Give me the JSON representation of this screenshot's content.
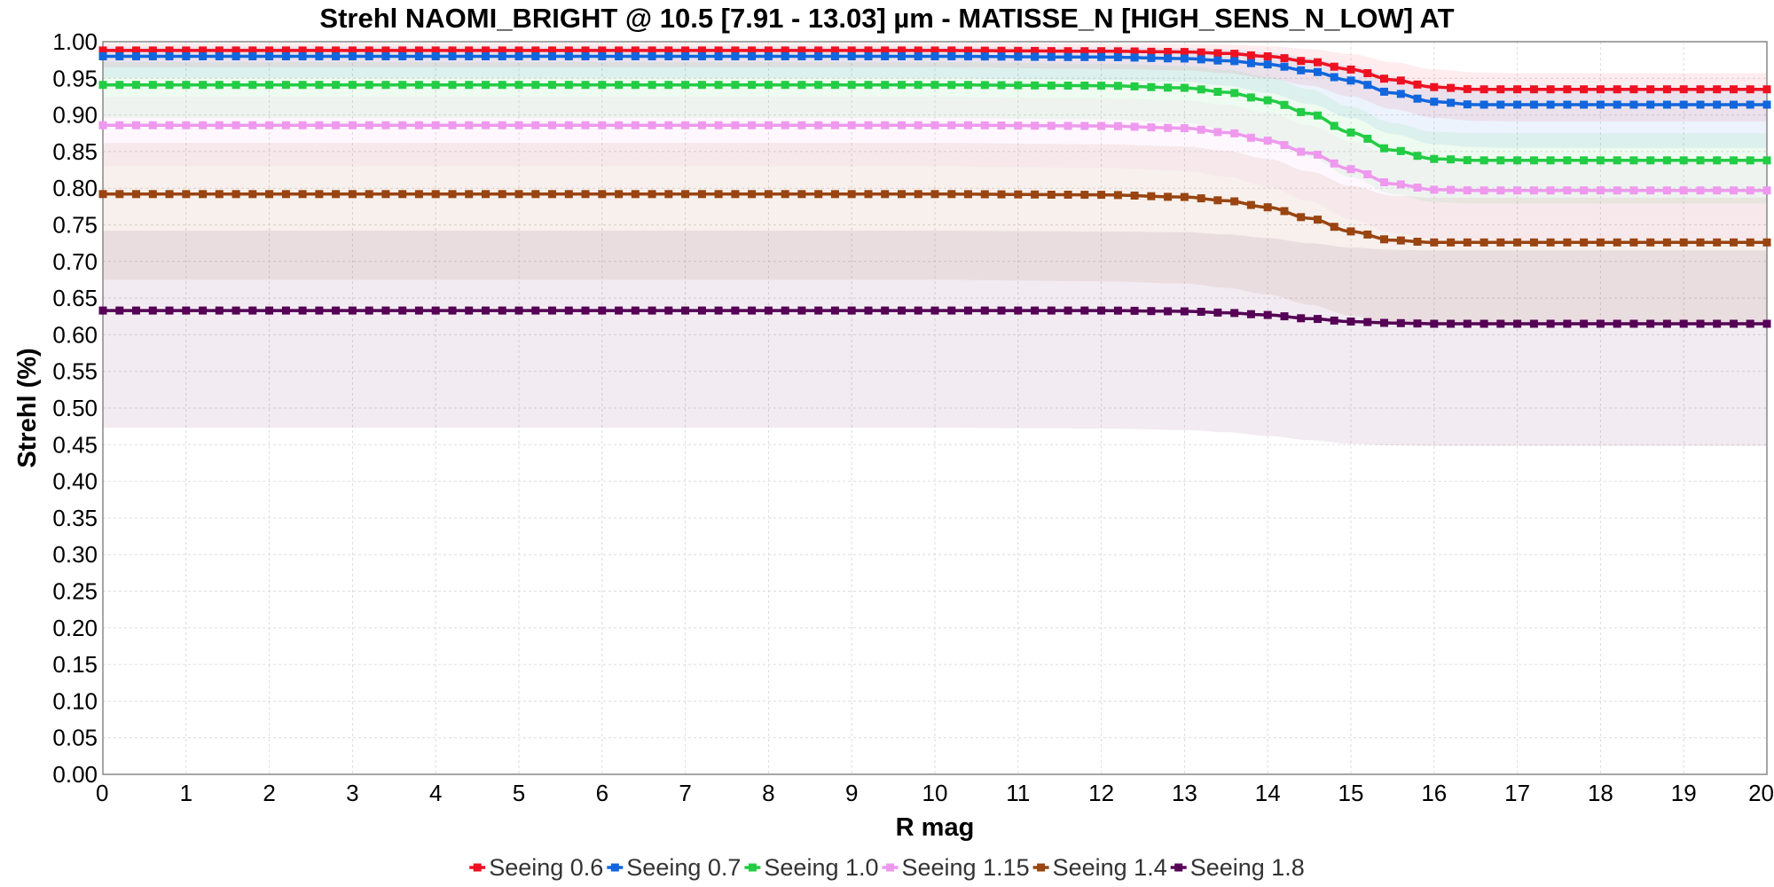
{
  "chart_data": {
    "type": "line",
    "title": "Strehl NAOMI_BRIGHT @ 10.5 [7.91 - 13.03] µm - MATISSE_N [HIGH_SENS_N_LOW] AT",
    "xlabel": "R mag",
    "ylabel": "Strehl (%)",
    "xlim": [
      0,
      20
    ],
    "ylim": [
      0,
      1
    ],
    "x_ticks": [
      "0",
      "1",
      "2",
      "3",
      "4",
      "5",
      "6",
      "7",
      "8",
      "9",
      "10",
      "11",
      "12",
      "13",
      "14",
      "15",
      "16",
      "17",
      "18",
      "19",
      "20"
    ],
    "y_ticks": [
      "0.00",
      "0.05",
      "0.10",
      "0.15",
      "0.20",
      "0.25",
      "0.30",
      "0.35",
      "0.40",
      "0.45",
      "0.50",
      "0.55",
      "0.60",
      "0.65",
      "0.70",
      "0.75",
      "0.80",
      "0.85",
      "0.90",
      "0.95",
      "1.00"
    ],
    "grid": true,
    "legend_position": "bottom",
    "x": [
      0,
      2,
      4,
      6,
      8,
      10,
      12,
      13,
      13.5,
      14,
      14.5,
      15,
      15.5,
      16,
      16.5,
      17,
      18,
      19,
      20
    ],
    "series": [
      {
        "name": "Seeing 0.6",
        "color": "#ee1122",
        "values": [
          0.988,
          0.988,
          0.988,
          0.988,
          0.988,
          0.988,
          0.987,
          0.986,
          0.984,
          0.98,
          0.973,
          0.962,
          0.948,
          0.938,
          0.935,
          0.935,
          0.935,
          0.935,
          0.935
        ],
        "band_upper": [
          0.998,
          0.998,
          0.998,
          0.998,
          0.998,
          0.998,
          0.997,
          0.997,
          0.996,
          0.994,
          0.99,
          0.983,
          0.972,
          0.962,
          0.958,
          0.957,
          0.957,
          0.957,
          0.957
        ],
        "band_lower": [
          0.965,
          0.965,
          0.965,
          0.965,
          0.965,
          0.965,
          0.963,
          0.961,
          0.957,
          0.95,
          0.94,
          0.925,
          0.908,
          0.896,
          0.892,
          0.891,
          0.891,
          0.891,
          0.891
        ]
      },
      {
        "name": "Seeing 0.7",
        "color": "#1166dd",
        "values": [
          0.98,
          0.98,
          0.98,
          0.98,
          0.98,
          0.98,
          0.979,
          0.977,
          0.974,
          0.969,
          0.96,
          0.947,
          0.93,
          0.918,
          0.914,
          0.914,
          0.914,
          0.914,
          0.914
        ],
        "band_upper": [
          0.993,
          0.993,
          0.993,
          0.993,
          0.993,
          0.993,
          0.992,
          0.991,
          0.989,
          0.985,
          0.978,
          0.967,
          0.952,
          0.94,
          0.936,
          0.935,
          0.935,
          0.935,
          0.935
        ],
        "band_lower": [
          0.95,
          0.95,
          0.95,
          0.95,
          0.95,
          0.95,
          0.948,
          0.945,
          0.94,
          0.93,
          0.915,
          0.896,
          0.874,
          0.86,
          0.856,
          0.855,
          0.855,
          0.855,
          0.855
        ]
      },
      {
        "name": "Seeing 1.0",
        "color": "#22cc44",
        "values": [
          0.941,
          0.941,
          0.941,
          0.941,
          0.941,
          0.941,
          0.94,
          0.937,
          0.931,
          0.92,
          0.902,
          0.876,
          0.852,
          0.84,
          0.838,
          0.838,
          0.838,
          0.838,
          0.838
        ],
        "band_upper": [
          0.972,
          0.972,
          0.972,
          0.972,
          0.972,
          0.972,
          0.97,
          0.967,
          0.962,
          0.952,
          0.935,
          0.911,
          0.889,
          0.877,
          0.875,
          0.875,
          0.875,
          0.875,
          0.875
        ],
        "band_lower": [
          0.896,
          0.896,
          0.896,
          0.896,
          0.896,
          0.896,
          0.894,
          0.889,
          0.88,
          0.865,
          0.843,
          0.815,
          0.792,
          0.781,
          0.779,
          0.779,
          0.779,
          0.779,
          0.779
        ]
      },
      {
        "name": "Seeing 1.15",
        "color": "#ee99ee",
        "values": [
          0.886,
          0.886,
          0.886,
          0.886,
          0.886,
          0.886,
          0.885,
          0.882,
          0.876,
          0.865,
          0.848,
          0.826,
          0.806,
          0.798,
          0.797,
          0.797,
          0.797,
          0.797,
          0.797
        ],
        "band_upper": [
          0.925,
          0.925,
          0.925,
          0.925,
          0.925,
          0.925,
          0.923,
          0.92,
          0.914,
          0.903,
          0.886,
          0.864,
          0.845,
          0.837,
          0.836,
          0.836,
          0.836,
          0.836,
          0.836
        ],
        "band_lower": [
          0.83,
          0.83,
          0.83,
          0.83,
          0.83,
          0.83,
          0.828,
          0.824,
          0.816,
          0.802,
          0.782,
          0.758,
          0.739,
          0.731,
          0.73,
          0.73,
          0.73,
          0.73,
          0.73
        ]
      },
      {
        "name": "Seeing 1.4",
        "color": "#994411",
        "values": [
          0.792,
          0.792,
          0.792,
          0.792,
          0.792,
          0.792,
          0.791,
          0.788,
          0.783,
          0.774,
          0.759,
          0.741,
          0.729,
          0.726,
          0.726,
          0.726,
          0.726,
          0.726,
          0.726
        ],
        "band_upper": [
          0.862,
          0.862,
          0.862,
          0.862,
          0.862,
          0.862,
          0.86,
          0.857,
          0.851,
          0.84,
          0.823,
          0.803,
          0.79,
          0.787,
          0.787,
          0.787,
          0.787,
          0.787,
          0.787
        ],
        "band_lower": [
          0.675,
          0.675,
          0.675,
          0.675,
          0.675,
          0.675,
          0.673,
          0.67,
          0.664,
          0.655,
          0.641,
          0.626,
          0.616,
          0.614,
          0.614,
          0.614,
          0.614,
          0.614,
          0.614
        ]
      },
      {
        "name": "Seeing 1.8",
        "color": "#550055",
        "values": [
          0.633,
          0.633,
          0.633,
          0.633,
          0.633,
          0.633,
          0.633,
          0.632,
          0.63,
          0.627,
          0.622,
          0.618,
          0.616,
          0.615,
          0.615,
          0.615,
          0.615,
          0.615,
          0.615
        ],
        "band_upper": [
          0.742,
          0.742,
          0.742,
          0.742,
          0.742,
          0.742,
          0.741,
          0.74,
          0.737,
          0.732,
          0.725,
          0.719,
          0.716,
          0.715,
          0.715,
          0.715,
          0.715,
          0.715,
          0.715
        ],
        "band_lower": [
          0.473,
          0.473,
          0.473,
          0.473,
          0.473,
          0.473,
          0.472,
          0.47,
          0.467,
          0.462,
          0.456,
          0.451,
          0.449,
          0.448,
          0.448,
          0.448,
          0.448,
          0.448,
          0.448
        ]
      }
    ]
  }
}
